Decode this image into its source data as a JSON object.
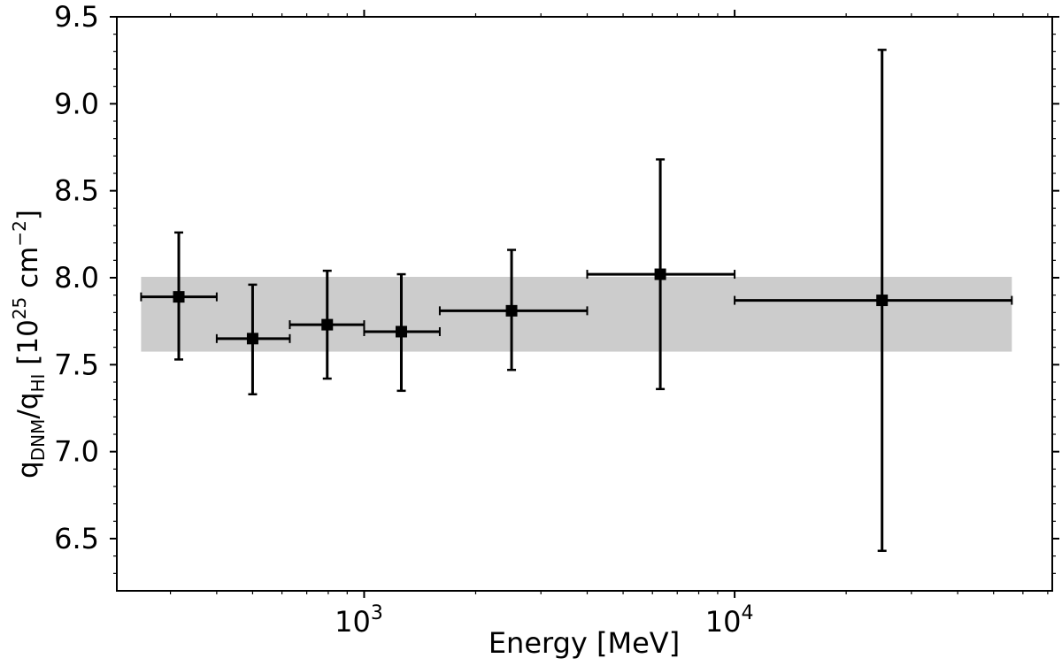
{
  "chart_data": {
    "type": "scatter",
    "xlabel": "Energy [MeV]",
    "ylabel": {
      "q1": "q",
      "sub1": "DNM",
      "slash": "/q",
      "sub2": "HI",
      "bracket_open": " [10",
      "sup1": "25",
      "unit": " cm",
      "sup2": "−2",
      "bracket_close": "]"
    },
    "xscale": "log",
    "xlim": [
      215,
      72000
    ],
    "ylim": [
      6.2,
      9.5
    ],
    "yticks": [
      "6.5",
      "7.0",
      "7.5",
      "8.0",
      "8.5",
      "9.0",
      "9.5"
    ],
    "xticks": [
      {
        "value": 1000,
        "base": "10",
        "exp": "3"
      },
      {
        "value": 10000,
        "base": "10",
        "exp": "4"
      }
    ],
    "band": {
      "y_low": 7.575,
      "y_high": 8.005,
      "x_low": 250,
      "x_high": 56000,
      "color": "#cccccc"
    },
    "points": [
      {
        "x": 316,
        "y": 7.89,
        "x_low": 250,
        "x_high": 400,
        "y_low": 7.53,
        "y_high": 8.26
      },
      {
        "x": 500,
        "y": 7.65,
        "x_low": 400,
        "x_high": 630,
        "y_low": 7.33,
        "y_high": 7.96
      },
      {
        "x": 795,
        "y": 7.73,
        "x_low": 630,
        "x_high": 1000,
        "y_low": 7.42,
        "y_high": 8.04
      },
      {
        "x": 1260,
        "y": 7.69,
        "x_low": 1000,
        "x_high": 1600,
        "y_low": 7.35,
        "y_high": 8.02
      },
      {
        "x": 2500,
        "y": 7.81,
        "x_low": 1600,
        "x_high": 4000,
        "y_low": 7.47,
        "y_high": 8.16
      },
      {
        "x": 6300,
        "y": 8.02,
        "x_low": 4000,
        "x_high": 10000,
        "y_low": 7.36,
        "y_high": 8.68
      },
      {
        "x": 25000,
        "y": 7.87,
        "x_low": 10000,
        "x_high": 56000,
        "y_low": 6.43,
        "y_high": 9.31
      }
    ],
    "marker_color": "#000000"
  }
}
